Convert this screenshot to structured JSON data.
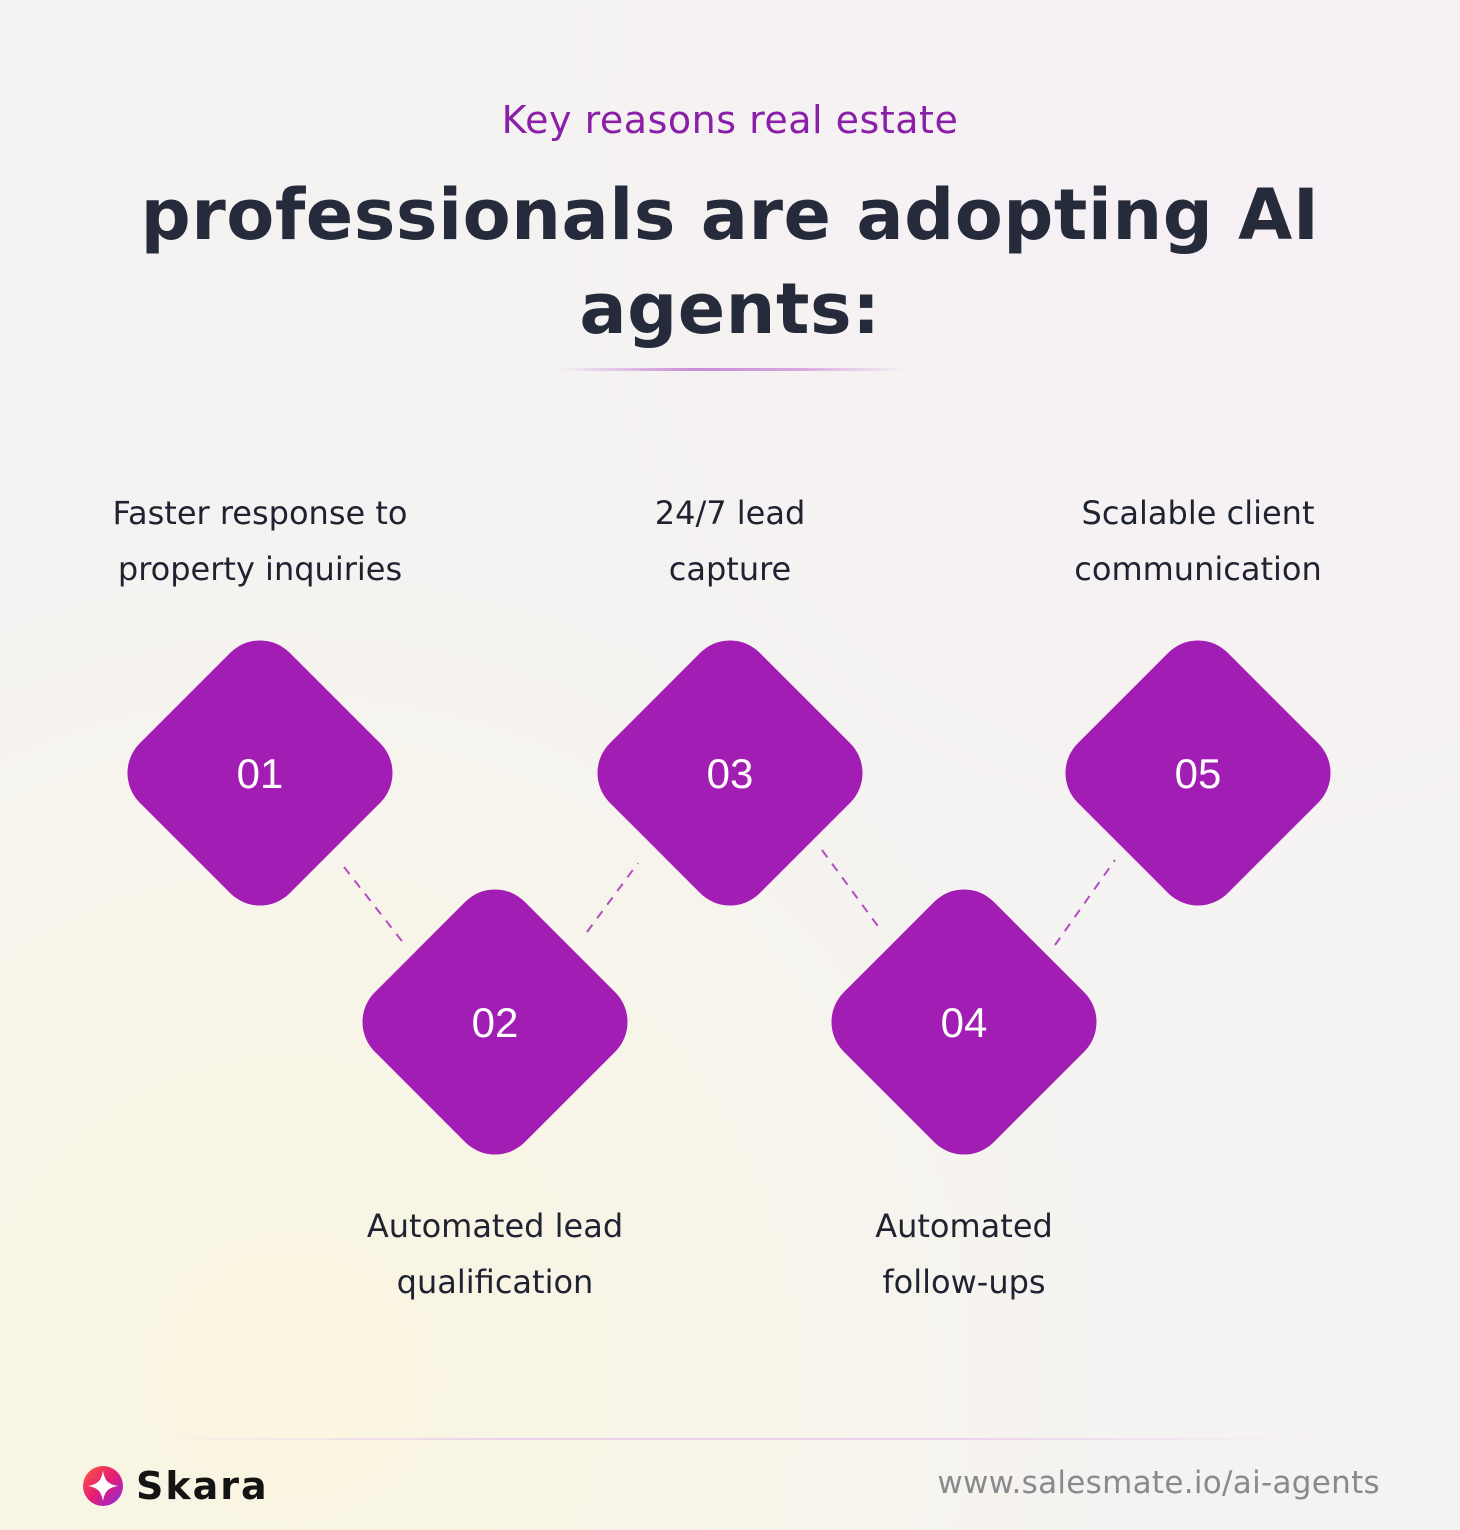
{
  "header": {
    "kicker": "Key reasons real estate",
    "headline": "professionals are adopting AI agents:"
  },
  "steps": [
    {
      "number": "01",
      "label": "Faster response to\nproperty inquiries"
    },
    {
      "number": "02",
      "label": "Automated lead\nqualification"
    },
    {
      "number": "03",
      "label": "24/7 lead\ncapture"
    },
    {
      "number": "04",
      "label": "Automated\nfollow-ups"
    },
    {
      "number": "05",
      "label": "Scalable client\ncommunication"
    }
  ],
  "colors": {
    "accent": "#a21db3",
    "kicker": "#8a1fa8",
    "headline": "#262b3b"
  },
  "footer": {
    "brand": "Skara",
    "logo_icon": "skara-logo-icon",
    "url": "www.salesmate.io/ai-agents"
  }
}
